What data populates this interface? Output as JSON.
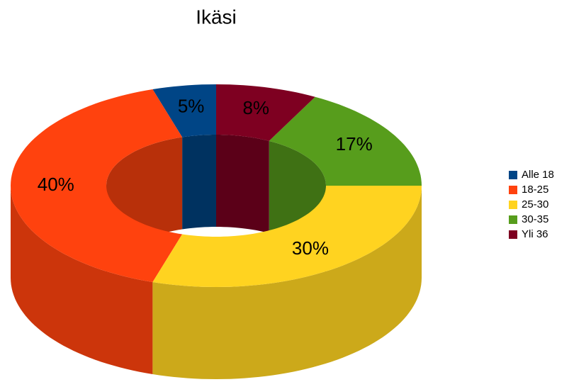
{
  "chart_data": {
    "type": "donut3d",
    "title": "Ikäsi",
    "categories": [
      "Alle 18",
      "18-25",
      "25-30",
      "30-35",
      "Yli 36"
    ],
    "values": [
      5,
      40,
      30,
      17,
      8
    ],
    "value_labels": [
      "5%",
      "40%",
      "30%",
      "17%",
      "8%"
    ],
    "colors": [
      "#004586",
      "#ff420e",
      "#ffd320",
      "#579d1c",
      "#7e0021"
    ],
    "legend": "right"
  }
}
